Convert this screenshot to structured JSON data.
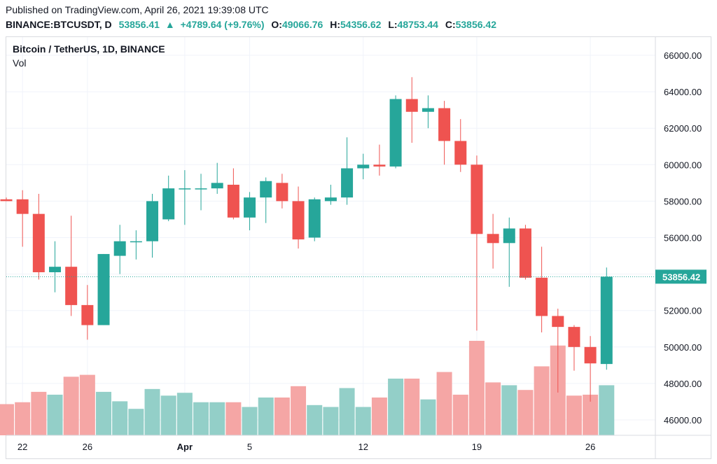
{
  "header": {
    "published": "Published on TradingView.com, April 26, 2021 19:39:08 UTC",
    "symbol": "BINANCE:BTCUSDT, D",
    "last": "53856.41",
    "change": "+4789.64 (+9.76%)",
    "o_label": "O:",
    "o_value": "49066.76",
    "h_label": "H:",
    "h_value": "54356.62",
    "l_label": "L:",
    "l_value": "48753.44",
    "c_label": "C:",
    "c_value": "53856.42"
  },
  "legend": {
    "title": "Bitcoin / TetherUS, 1D, BINANCE",
    "vol": "Vol"
  },
  "colors": {
    "up": "#26a69a",
    "down": "#ef5350",
    "up_vol": "#93cfc8",
    "down_vol": "#f5a6a5",
    "grid": "#f0f3fa",
    "price_tag": "#26a69a"
  },
  "chart_data": {
    "type": "candlestick",
    "title": "Bitcoin / TetherUS, 1D, BINANCE",
    "price_label": "53856.42",
    "y_ticks": [
      "46000.00",
      "48000.00",
      "50000.00",
      "52000.00",
      "54000.00",
      "56000.00",
      "58000.00",
      "60000.00",
      "62000.00",
      "64000.00",
      "66000.00"
    ],
    "y_range": [
      45000,
      67000
    ],
    "x_ticks": [
      {
        "label": "22",
        "index": 1
      },
      {
        "label": "26",
        "index": 5
      },
      {
        "label": "Apr",
        "index": 11
      },
      {
        "label": "5",
        "index": 15
      },
      {
        "label": "12",
        "index": 22
      },
      {
        "label": "19",
        "index": 29
      },
      {
        "label": "26",
        "index": 36
      }
    ],
    "candles": [
      {
        "o": 58100,
        "h": 58200,
        "l": 58000,
        "c": 58000
      },
      {
        "o": 58100,
        "h": 58600,
        "l": 55500,
        "c": 57300
      },
      {
        "o": 57300,
        "h": 58400,
        "l": 53700,
        "c": 54100
      },
      {
        "o": 54100,
        "h": 55800,
        "l": 53000,
        "c": 54400
      },
      {
        "o": 54400,
        "h": 57200,
        "l": 51700,
        "c": 52300
      },
      {
        "o": 52300,
        "h": 53400,
        "l": 50400,
        "c": 51200
      },
      {
        "o": 51200,
        "h": 55100,
        "l": 51200,
        "c": 55100
      },
      {
        "o": 55000,
        "h": 56700,
        "l": 54000,
        "c": 55800
      },
      {
        "o": 55800,
        "h": 56400,
        "l": 54800,
        "c": 55800
      },
      {
        "o": 55800,
        "h": 58400,
        "l": 54900,
        "c": 58000
      },
      {
        "o": 57000,
        "h": 59400,
        "l": 56900,
        "c": 58700
      },
      {
        "o": 58700,
        "h": 59700,
        "l": 56700,
        "c": 58700
      },
      {
        "o": 58700,
        "h": 59500,
        "l": 57500,
        "c": 58700
      },
      {
        "o": 58700,
        "h": 60100,
        "l": 58400,
        "c": 59000
      },
      {
        "o": 58900,
        "h": 59800,
        "l": 57000,
        "c": 57100
      },
      {
        "o": 57100,
        "h": 58500,
        "l": 56400,
        "c": 58200
      },
      {
        "o": 58200,
        "h": 59300,
        "l": 56800,
        "c": 59100
      },
      {
        "o": 59000,
        "h": 59500,
        "l": 57600,
        "c": 58000
      },
      {
        "o": 58000,
        "h": 58800,
        "l": 55400,
        "c": 55900
      },
      {
        "o": 56000,
        "h": 58200,
        "l": 55800,
        "c": 58100
      },
      {
        "o": 58000,
        "h": 58900,
        "l": 57800,
        "c": 58200
      },
      {
        "o": 58200,
        "h": 61500,
        "l": 57800,
        "c": 59800
      },
      {
        "o": 59800,
        "h": 60600,
        "l": 59200,
        "c": 60000
      },
      {
        "o": 60000,
        "h": 61100,
        "l": 59400,
        "c": 59900
      },
      {
        "o": 59900,
        "h": 63800,
        "l": 59800,
        "c": 63600
      },
      {
        "o": 63600,
        "h": 64800,
        "l": 61200,
        "c": 62900
      },
      {
        "o": 62900,
        "h": 63800,
        "l": 62000,
        "c": 63100
      },
      {
        "o": 63100,
        "h": 63500,
        "l": 60000,
        "c": 61300
      },
      {
        "o": 61300,
        "h": 62500,
        "l": 59600,
        "c": 60000
      },
      {
        "o": 60000,
        "h": 60500,
        "l": 50900,
        "c": 56200
      },
      {
        "o": 56200,
        "h": 57300,
        "l": 54300,
        "c": 55700
      },
      {
        "o": 55700,
        "h": 57100,
        "l": 53300,
        "c": 56500
      },
      {
        "o": 56500,
        "h": 56700,
        "l": 53700,
        "c": 53800
      },
      {
        "o": 53800,
        "h": 55500,
        "l": 50800,
        "c": 51700
      },
      {
        "o": 51700,
        "h": 52100,
        "l": 47500,
        "c": 51100
      },
      {
        "o": 51100,
        "h": 51200,
        "l": 48700,
        "c": 50000
      },
      {
        "o": 50000,
        "h": 50600,
        "l": 47000,
        "c": 49100
      },
      {
        "o": 49066.76,
        "h": 54356.62,
        "l": 48753.44,
        "c": 53856.42
      }
    ],
    "volume_ticks": [],
    "volume_relative": [
      0.33,
      0.35,
      0.46,
      0.43,
      0.62,
      0.64,
      0.46,
      0.36,
      0.28,
      0.49,
      0.42,
      0.45,
      0.35,
      0.35,
      0.35,
      0.3,
      0.4,
      0.4,
      0.52,
      0.32,
      0.3,
      0.5,
      0.3,
      0.4,
      0.6,
      0.6,
      0.38,
      0.67,
      0.43,
      1.0,
      0.56,
      0.53,
      0.48,
      0.73,
      0.95,
      0.42,
      0.43,
      0.53
    ]
  }
}
